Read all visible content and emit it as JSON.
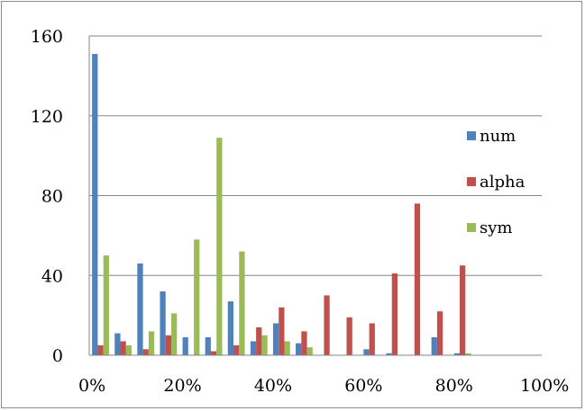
{
  "chart_data": {
    "type": "bar",
    "title": "",
    "xlabel": "",
    "ylabel": "",
    "ylim": [
      0,
      160
    ],
    "y_ticks": [
      "0",
      "40",
      "80",
      "120",
      "160"
    ],
    "x_ticks": [
      "0%",
      "20%",
      "40%",
      "60%",
      "80%",
      "100%"
    ],
    "categories": [
      "0%",
      "5%",
      "10%",
      "15%",
      "20%",
      "25%",
      "30%",
      "35%",
      "40%",
      "45%",
      "50%",
      "55%",
      "60%",
      "65%",
      "70%",
      "75%",
      "80%",
      "85%",
      "90%",
      "95%"
    ],
    "grid": true,
    "legend_position": "right",
    "series": [
      {
        "name": "num",
        "color": "#4F81BD",
        "values": [
          151,
          11,
          46,
          32,
          9,
          9,
          27,
          7,
          16,
          6,
          0,
          0,
          3,
          1,
          0,
          9,
          1,
          0,
          0,
          0
        ]
      },
      {
        "name": "alpha",
        "color": "#C0504D",
        "values": [
          5,
          7,
          3,
          10,
          0,
          2,
          5,
          14,
          24,
          12,
          30,
          19,
          16,
          41,
          76,
          22,
          45,
          0,
          0,
          0
        ]
      },
      {
        "name": "sym",
        "color": "#9BBB59",
        "values": [
          50,
          5,
          12,
          21,
          58,
          109,
          52,
          10,
          7,
          4,
          0,
          0,
          0,
          0,
          0,
          0,
          1,
          0,
          0,
          0
        ]
      }
    ]
  }
}
